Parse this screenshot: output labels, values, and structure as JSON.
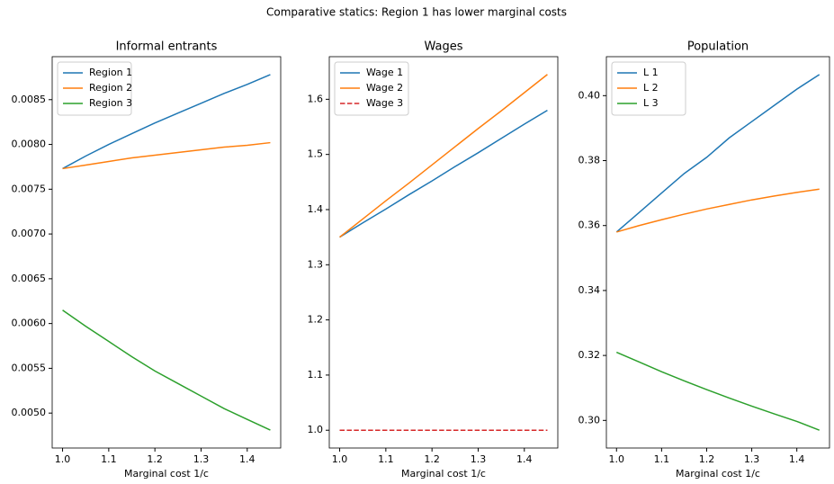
{
  "title": "Comparative statics: Region 1 has lower marginal costs",
  "chart_data": [
    {
      "type": "line",
      "title": "Informal entrants",
      "x_label": "Marginal cost 1/c",
      "x": [
        1.0,
        1.05,
        1.1,
        1.15,
        1.2,
        1.25,
        1.3,
        1.35,
        1.4,
        1.45
      ],
      "series": [
        {
          "name": "Region 1",
          "color": "#1f77b4",
          "values": [
            0.00773,
            0.00787,
            0.008,
            0.00812,
            0.00824,
            0.00835,
            0.00846,
            0.00857,
            0.00867,
            0.00878
          ]
        },
        {
          "name": "Region 2",
          "color": "#ff7f0e",
          "values": [
            0.00773,
            0.00777,
            0.00781,
            0.00785,
            0.00788,
            0.00791,
            0.00794,
            0.00797,
            0.00799,
            0.00802
          ]
        },
        {
          "name": "Region 3",
          "color": "#2ca02c",
          "values": [
            0.00615,
            0.00597,
            0.0058,
            0.00563,
            0.00547,
            0.00533,
            0.00519,
            0.00505,
            0.00493,
            0.00481
          ]
        }
      ],
      "xlim": [
        0.9775,
        1.4725
      ],
      "xticks": [
        {
          "value": 1.0,
          "label": "1.0"
        },
        1.1,
        1.2,
        1.3,
        1.4
      ],
      "ylim": [
        0.00461,
        0.00898
      ],
      "yticks": [
        {
          "value": 0.005,
          "label": "0.0050"
        },
        0.0055,
        {
          "value": 0.006,
          "label": "0.0060"
        },
        0.0065,
        {
          "value": 0.007,
          "label": "0.0070"
        },
        0.0075,
        {
          "value": 0.008,
          "label": "0.0080"
        },
        0.0085
      ],
      "legend": "upper left"
    },
    {
      "type": "line",
      "title": "Wages",
      "x_label": "Marginal cost 1/c",
      "x": [
        1.0,
        1.05,
        1.1,
        1.15,
        1.2,
        1.25,
        1.3,
        1.35,
        1.4,
        1.45
      ],
      "series": [
        {
          "name": "Wage 1",
          "color": "#1f77b4",
          "values": [
            1.35,
            1.376,
            1.401,
            1.427,
            1.452,
            1.478,
            1.503,
            1.529,
            1.555,
            1.58
          ]
        },
        {
          "name": "Wage 2",
          "color": "#ff7f0e",
          "values": [
            1.35,
            1.383,
            1.416,
            1.448,
            1.481,
            1.514,
            1.547,
            1.579,
            1.612,
            1.645
          ]
        },
        {
          "name": "Wage 3",
          "color": "#d62728",
          "linestyle": "dashed",
          "values": [
            1.0,
            1.0,
            1.0,
            1.0,
            1.0,
            1.0,
            1.0,
            1.0,
            1.0,
            1.0
          ]
        }
      ],
      "xlim": [
        0.9775,
        1.4725
      ],
      "xticks": [
        {
          "value": 1.0,
          "label": "1.0"
        },
        1.1,
        1.2,
        1.3,
        1.4
      ],
      "ylim": [
        0.96775,
        1.67725
      ],
      "yticks": [
        {
          "value": 1.0,
          "label": "1.0"
        },
        1.1,
        1.2,
        1.3,
        1.4,
        1.5,
        1.6
      ],
      "legend": "upper left"
    },
    {
      "type": "line",
      "title": "Population",
      "x_label": "Marginal cost 1/c",
      "x": [
        1.0,
        1.05,
        1.1,
        1.15,
        1.2,
        1.25,
        1.3,
        1.35,
        1.4,
        1.45
      ],
      "series": [
        {
          "name": "L 1",
          "color": "#1f77b4",
          "values": [
            0.358,
            0.364,
            0.37,
            0.376,
            0.381,
            0.387,
            0.392,
            0.397,
            0.402,
            0.4065
          ]
        },
        {
          "name": "L 2",
          "color": "#ff7f0e",
          "values": [
            0.358,
            0.36,
            0.3618,
            0.3635,
            0.3651,
            0.3665,
            0.3679,
            0.3691,
            0.3702,
            0.3712
          ]
        },
        {
          "name": "L 3",
          "color": "#2ca02c",
          "values": [
            0.321,
            0.318,
            0.315,
            0.3122,
            0.3095,
            0.3069,
            0.3044,
            0.302,
            0.2997,
            0.297
          ]
        }
      ],
      "xlim": [
        0.9775,
        1.4725
      ],
      "xticks": [
        {
          "value": 1.0,
          "label": "1.0"
        },
        1.1,
        1.2,
        1.3,
        1.4
      ],
      "ylim": [
        0.2915,
        0.412
      ],
      "yticks": [
        {
          "value": 0.3,
          "label": "0.30"
        },
        0.32,
        0.34,
        0.36,
        0.38,
        {
          "value": 0.4,
          "label": "0.40"
        }
      ],
      "legend": "upper left"
    }
  ]
}
